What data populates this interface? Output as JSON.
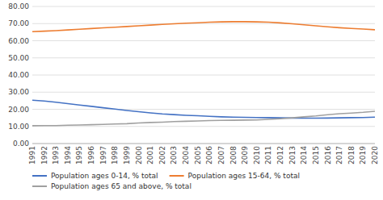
{
  "chart_data": {
    "type": "line",
    "x": [
      1991,
      1992,
      1993,
      1994,
      1995,
      1996,
      1997,
      1998,
      1999,
      2000,
      2001,
      2002,
      2003,
      2004,
      2005,
      2006,
      2007,
      2008,
      2009,
      2010,
      2011,
      2012,
      2013,
      2014,
      2015,
      2016,
      2017,
      2018,
      2019,
      2020
    ],
    "series": [
      {
        "name": "Population ages 0-14, % total",
        "color": "#4472C4",
        "values": [
          25.3,
          24.8,
          24.1,
          23.3,
          22.5,
          21.7,
          20.9,
          20.1,
          19.3,
          18.6,
          17.9,
          17.3,
          16.9,
          16.5,
          16.2,
          15.9,
          15.6,
          15.4,
          15.3,
          15.2,
          15.1,
          15.0,
          14.9,
          14.8,
          14.8,
          14.9,
          15.0,
          15.1,
          15.2,
          15.4
        ]
      },
      {
        "name": "Population ages 15-64, % total",
        "color": "#ED7D31",
        "values": [
          65.3,
          65.6,
          65.9,
          66.3,
          66.7,
          67.1,
          67.5,
          67.9,
          68.3,
          68.7,
          69.1,
          69.5,
          69.9,
          70.2,
          70.5,
          70.8,
          71.0,
          71.1,
          71.1,
          71.0,
          70.8,
          70.4,
          69.9,
          69.3,
          68.7,
          68.1,
          67.6,
          67.2,
          66.8,
          66.4
        ]
      },
      {
        "name": "Population ages 65 and above, % total",
        "color": "#A0A0A0",
        "values": [
          10.4,
          10.5,
          10.5,
          10.7,
          10.8,
          11.0,
          11.2,
          11.4,
          11.6,
          12.0,
          12.3,
          12.5,
          12.8,
          13.0,
          13.2,
          13.4,
          13.5,
          13.6,
          13.7,
          13.8,
          14.1,
          14.5,
          15.0,
          15.6,
          16.1,
          16.8,
          17.4,
          17.8,
          18.2,
          18.8
        ]
      }
    ],
    "xlim": [
      1991,
      2020
    ],
    "xticks": [
      1991,
      1992,
      1993,
      1994,
      1995,
      1996,
      1997,
      1998,
      1999,
      2000,
      2001,
      2002,
      2003,
      2004,
      2005,
      2006,
      2007,
      2008,
      2009,
      2010,
      2011,
      2012,
      2013,
      2014,
      2015,
      2016,
      2017,
      2018,
      2019,
      2020
    ],
    "ylim": [
      0,
      80
    ],
    "yticks": [
      {
        "value": 0.0,
        "label": "0.00"
      },
      {
        "value": 10.0,
        "label": "10.00"
      },
      {
        "value": 20.0,
        "label": "20.00"
      },
      {
        "value": 30.0,
        "label": "30.00"
      },
      {
        "value": 40.0,
        "label": "40.00"
      },
      {
        "value": 50.0,
        "label": "50.00"
      },
      {
        "value": 60.0,
        "label": "60.00"
      },
      {
        "value": 70.0,
        "label": "70.00"
      },
      {
        "value": 80.0,
        "label": "80.00"
      }
    ],
    "grid": true,
    "legend": "bottom"
  }
}
